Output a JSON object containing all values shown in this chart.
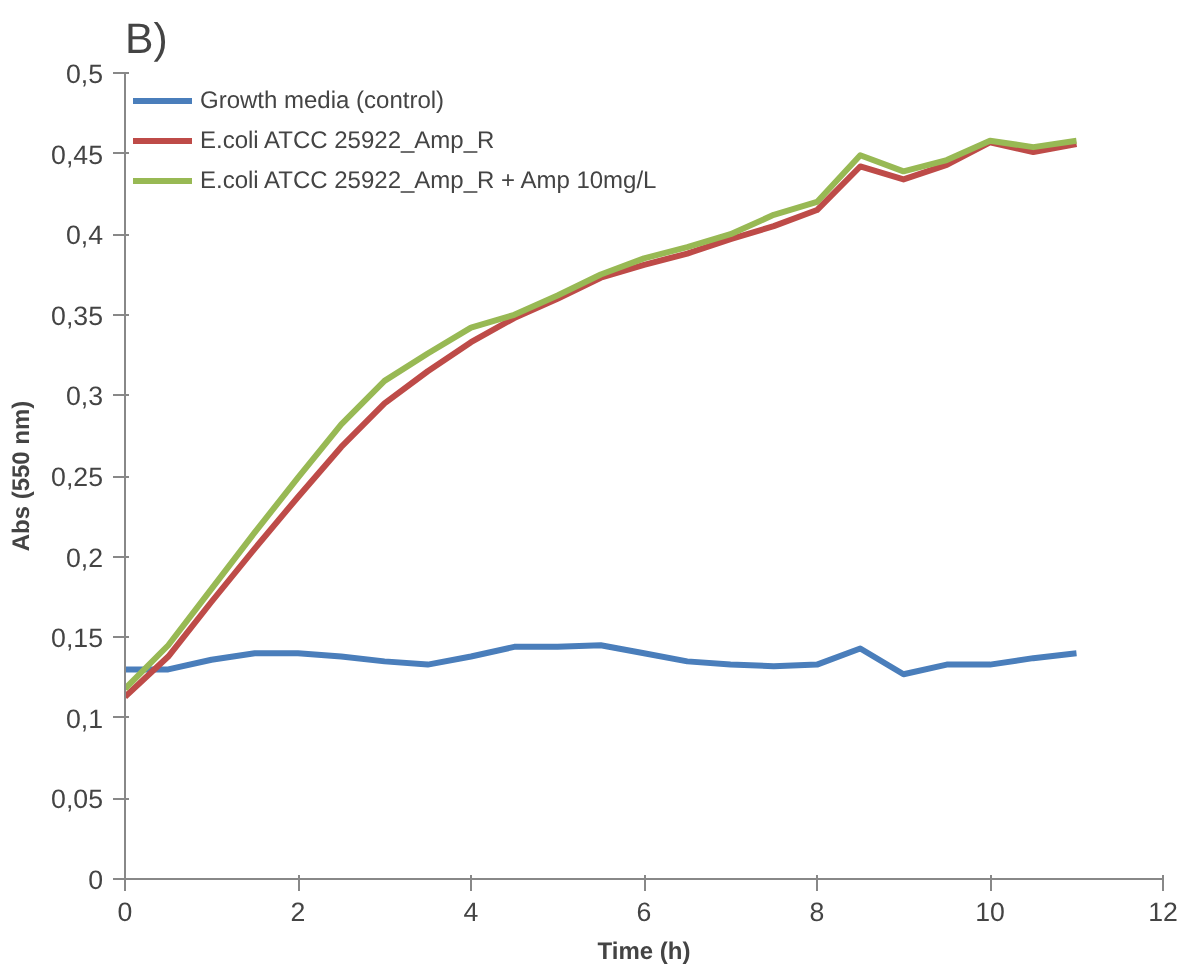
{
  "chart_data": {
    "type": "line",
    "title": "B)",
    "xlabel": "Time (h)",
    "ylabel": "Abs (550 nm)",
    "x": [
      0,
      0.5,
      1,
      1.5,
      2,
      2.5,
      3,
      3.5,
      4,
      4.5,
      5,
      5.5,
      6,
      6.5,
      7,
      7.5,
      8,
      8.5,
      9,
      9.5,
      10,
      10.5,
      11
    ],
    "series": [
      {
        "name": "Growth media (control)",
        "color": "#4a7ebb",
        "values": [
          0.13,
          0.13,
          0.136,
          0.14,
          0.14,
          0.138,
          0.135,
          0.133,
          0.138,
          0.144,
          0.144,
          0.145,
          0.14,
          0.135,
          0.133,
          0.132,
          0.133,
          0.143,
          0.127,
          0.133,
          0.133,
          0.137,
          0.14
        ]
      },
      {
        "name": "E.coli ATCC 25922_Amp_R",
        "color": "#be4b48",
        "values": [
          0.113,
          0.138,
          0.172,
          0.205,
          0.237,
          0.268,
          0.295,
          0.315,
          0.333,
          0.348,
          0.36,
          0.373,
          0.381,
          0.388,
          0.397,
          0.405,
          0.415,
          0.442,
          0.434,
          0.443,
          0.457,
          0.451,
          0.456
        ]
      },
      {
        "name": "E.coli ATCC 25922_Amp_R + Amp 10mg/L",
        "color": "#98b954",
        "values": [
          0.118,
          0.145,
          0.18,
          0.215,
          0.249,
          0.282,
          0.309,
          0.326,
          0.342,
          0.35,
          0.362,
          0.375,
          0.385,
          0.392,
          0.4,
          0.412,
          0.42,
          0.449,
          0.439,
          0.446,
          0.458,
          0.454,
          0.458
        ]
      }
    ],
    "xlim": [
      0,
      12
    ],
    "xticks": [
      0,
      2,
      4,
      6,
      8,
      10,
      12
    ],
    "ylim": [
      0,
      0.5
    ],
    "yticks": [
      0,
      {
        "value": 0.05,
        "label": "0,05"
      },
      {
        "value": 0.1,
        "label": "0,1"
      },
      {
        "value": 0.15,
        "label": "0,15"
      },
      {
        "value": 0.2,
        "label": "0,2"
      },
      {
        "value": 0.25,
        "label": "0,25"
      },
      {
        "value": 0.3,
        "label": "0,3"
      },
      {
        "value": 0.35,
        "label": "0,35"
      },
      {
        "value": 0.4,
        "label": "0,4"
      },
      {
        "value": 0.45,
        "label": "0,45"
      },
      {
        "value": 0.5,
        "label": "0,5"
      }
    ],
    "legend": "top left",
    "grid": false,
    "line_style": "solid",
    "marker": "none"
  }
}
